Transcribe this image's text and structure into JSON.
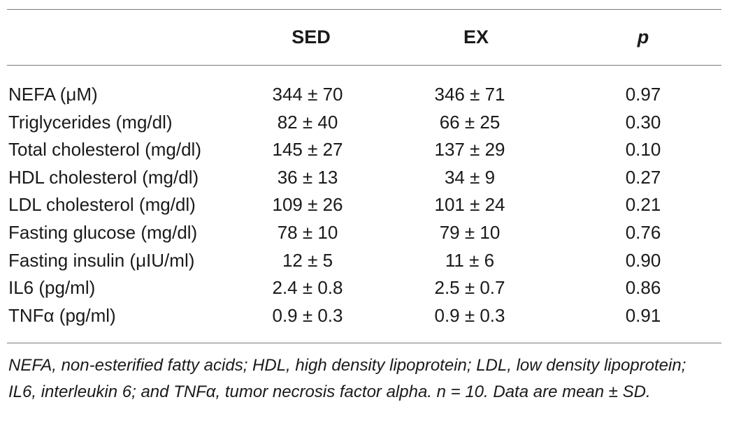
{
  "table": {
    "headers": {
      "col1": "",
      "sed": "SED",
      "ex": "EX",
      "p": "p"
    },
    "rows": [
      {
        "label": "NEFA (μM)",
        "sed": "344 ± 70",
        "ex": "346 ± 71",
        "p": "0.97"
      },
      {
        "label": "Triglycerides (mg/dl)",
        "sed": "82 ± 40",
        "ex": "66 ± 25",
        "p": "0.30"
      },
      {
        "label": "Total cholesterol (mg/dl)",
        "sed": "145 ± 27",
        "ex": "137 ± 29",
        "p": "0.10"
      },
      {
        "label": "HDL cholesterol (mg/dl)",
        "sed": "36 ± 13",
        "ex": "34 ± 9",
        "p": "0.27"
      },
      {
        "label": "LDL cholesterol (mg/dl)",
        "sed": "109 ± 26",
        "ex": "101 ± 24",
        "p": "0.21"
      },
      {
        "label": "Fasting glucose (mg/dl)",
        "sed": "78 ± 10",
        "ex": "79 ± 10",
        "p": "0.76"
      },
      {
        "label": "Fasting insulin (μIU/ml)",
        "sed": "12 ± 5",
        "ex": "11 ± 6",
        "p": "0.90"
      },
      {
        "label": "IL6 (pg/ml)",
        "sed": "2.4 ± 0.8",
        "ex": "2.5 ± 0.7",
        "p": "0.86"
      },
      {
        "label": "TNFα (pg/ml)",
        "sed": "0.9 ± 0.3",
        "ex": "0.9 ± 0.3",
        "p": "0.91"
      }
    ],
    "footnote": "NEFA, non-esterified fatty acids; HDL, high density lipoprotein; LDL, low density lipoprotein; IL6, interleukin 6; and TNFα, tumor necrosis factor alpha. n = 10. Data are mean ± SD."
  }
}
